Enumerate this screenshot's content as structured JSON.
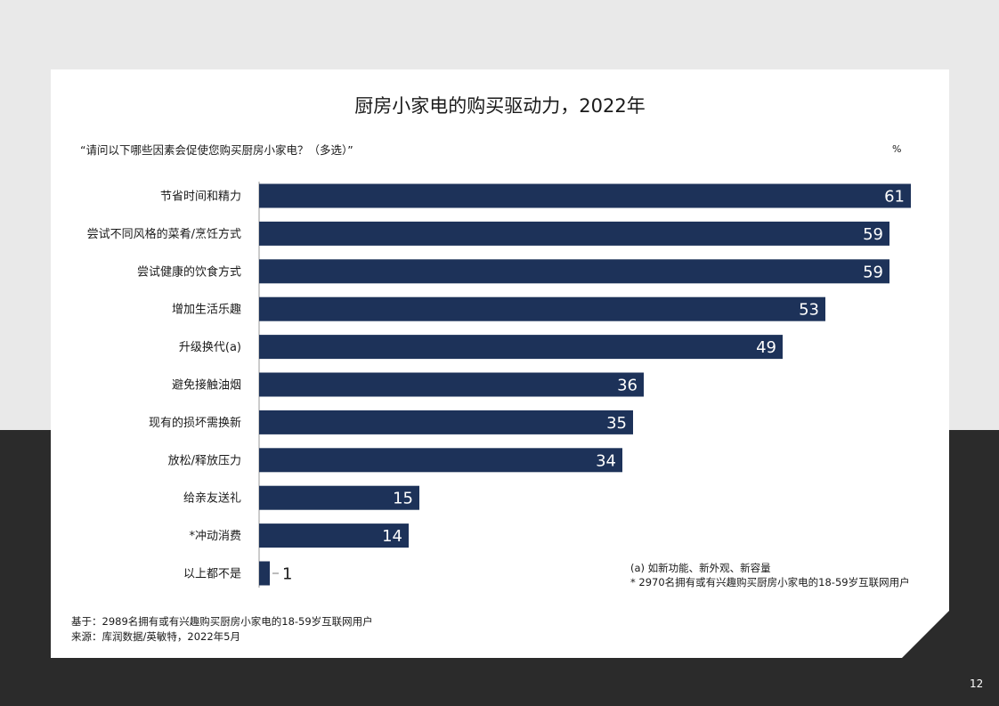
{
  "page": {
    "title": "厨房小家电的购买驱动力，2022年",
    "question": "“请问以下哪些因素会促使您购买厨房小家电？（多选）”",
    "unit": "%",
    "note_a": "(a) 如新功能、新外观、新容量",
    "note_star": "* 2970名拥有或有兴趣购买厨房小家电的18-59岁互联网用户",
    "base": "基于：2989名拥有或有兴趣购买厨房小家电的18-59岁互联网用户",
    "source": "来源：库润数据/英敏特，2022年5月",
    "page_number": "12"
  },
  "colors": {
    "bar": "#1d3259",
    "bar_label": "#ffffff",
    "outside_label": "#1a1a1a",
    "background_top": "#e9e9e9",
    "background_bottom": "#2b2b2b"
  },
  "chart_data": {
    "type": "bar",
    "orientation": "horizontal",
    "categories": [
      "节省时间和精力",
      "尝试不同风格的菜肴/烹饪方式",
      "尝试健康的饮食方式",
      "增加生活乐趣",
      "升级换代(a)",
      "避免接触油烟",
      "现有的损坏需换新",
      "放松/释放压力",
      "给亲友送礼",
      "*冲动消费",
      "以上都不是"
    ],
    "values": [
      61,
      59,
      59,
      53,
      49,
      36,
      35,
      34,
      15,
      14,
      1
    ],
    "xlim": [
      0,
      61
    ],
    "value_unit": "%",
    "grid": false,
    "legend": "none"
  }
}
